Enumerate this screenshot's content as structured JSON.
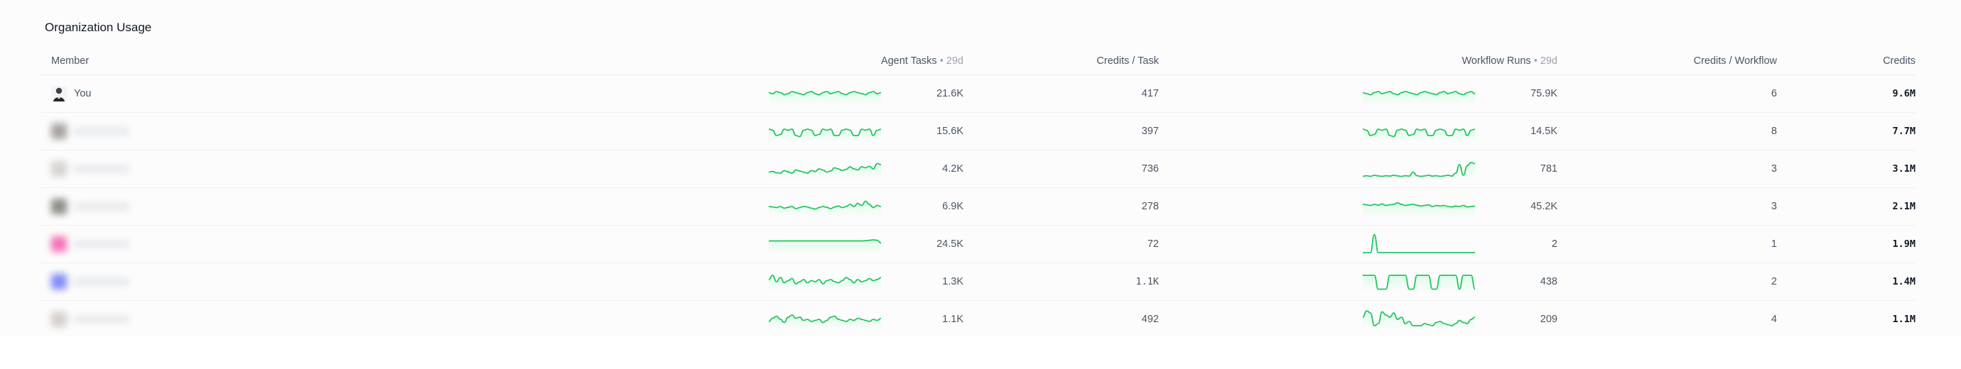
{
  "title": "Organization Usage",
  "headers": {
    "member": "Member",
    "agent_tasks": "Agent Tasks",
    "agent_tasks_period": " • 29d",
    "credits_per_task": "Credits / Task",
    "workflow_runs": "Workflow Runs",
    "workflow_runs_period": " • 29d",
    "credits_per_workflow": "Credits / Workflow",
    "credits": "Credits"
  },
  "colors": {
    "spark_line": "#22c55e",
    "spark_fill": "#dcfce7"
  },
  "rows": [
    {
      "member": "You",
      "avatar_icon": "user-photo-icon",
      "avatar_color": "#6b6b6b",
      "agent_tasks": "21.6K",
      "credits_per_task": "417",
      "workflow_runs": "75.9K",
      "credits_per_workflow": "6",
      "credits": "9.6M",
      "agent_spark": [
        0.55,
        0.5,
        0.6,
        0.55,
        0.45,
        0.5,
        0.6,
        0.55,
        0.5,
        0.45,
        0.55,
        0.6,
        0.5,
        0.45,
        0.55,
        0.6,
        0.5,
        0.55,
        0.6,
        0.5,
        0.45,
        0.55,
        0.6,
        0.55,
        0.5,
        0.45,
        0.55,
        0.6,
        0.5,
        0.55
      ],
      "workflow_spark": [
        0.55,
        0.5,
        0.45,
        0.55,
        0.6,
        0.5,
        0.55,
        0.6,
        0.5,
        0.45,
        0.55,
        0.6,
        0.55,
        0.5,
        0.45,
        0.55,
        0.6,
        0.55,
        0.5,
        0.45,
        0.55,
        0.6,
        0.5,
        0.55,
        0.6,
        0.5,
        0.45,
        0.55,
        0.6,
        0.5
      ]
    },
    {
      "member": "",
      "avatar_icon": "user-avatar-icon",
      "avatar_color": "#a8a29e",
      "agent_tasks": "15.6K",
      "credits_per_task": "397",
      "workflow_runs": "14.5K",
      "credits_per_workflow": "8",
      "credits": "7.7M",
      "agent_spark": [
        0.6,
        0.55,
        0.3,
        0.35,
        0.6,
        0.55,
        0.6,
        0.3,
        0.25,
        0.55,
        0.6,
        0.55,
        0.3,
        0.35,
        0.6,
        0.55,
        0.6,
        0.3,
        0.3,
        0.55,
        0.6,
        0.55,
        0.3,
        0.3,
        0.6,
        0.55,
        0.6,
        0.3,
        0.55,
        0.6
      ],
      "workflow_spark": [
        0.6,
        0.55,
        0.3,
        0.35,
        0.6,
        0.55,
        0.6,
        0.3,
        0.25,
        0.55,
        0.6,
        0.55,
        0.3,
        0.35,
        0.6,
        0.55,
        0.6,
        0.3,
        0.3,
        0.55,
        0.6,
        0.55,
        0.3,
        0.3,
        0.6,
        0.55,
        0.6,
        0.3,
        0.55,
        0.6
      ]
    },
    {
      "member": "",
      "avatar_icon": "user-avatar-icon",
      "avatar_color": "#d6d3d1",
      "agent_tasks": "4.2K",
      "credits_per_task": "736",
      "workflow_runs": "781",
      "credits_per_workflow": "3",
      "credits": "3.1M",
      "agent_spark": [
        0.35,
        0.38,
        0.32,
        0.3,
        0.42,
        0.36,
        0.3,
        0.45,
        0.4,
        0.35,
        0.3,
        0.42,
        0.38,
        0.5,
        0.45,
        0.35,
        0.4,
        0.55,
        0.5,
        0.42,
        0.48,
        0.6,
        0.5,
        0.45,
        0.6,
        0.55,
        0.62,
        0.5,
        0.75,
        0.7
      ],
      "workflow_spark": [
        0.15,
        0.18,
        0.15,
        0.2,
        0.17,
        0.15,
        0.18,
        0.16,
        0.2,
        0.17,
        0.15,
        0.18,
        0.16,
        0.35,
        0.18,
        0.15,
        0.17,
        0.2,
        0.16,
        0.18,
        0.15,
        0.17,
        0.2,
        0.16,
        0.3,
        0.7,
        0.2,
        0.65,
        0.8,
        0.75
      ]
    },
    {
      "member": "",
      "avatar_icon": "user-avatar-icon",
      "avatar_color": "#8a8f86",
      "agent_tasks": "6.9K",
      "credits_per_task": "278",
      "workflow_runs": "45.2K",
      "credits_per_workflow": "3",
      "credits": "2.1M",
      "agent_spark": [
        0.5,
        0.48,
        0.45,
        0.5,
        0.42,
        0.46,
        0.5,
        0.4,
        0.45,
        0.5,
        0.48,
        0.42,
        0.38,
        0.45,
        0.5,
        0.46,
        0.4,
        0.48,
        0.52,
        0.45,
        0.5,
        0.6,
        0.5,
        0.65,
        0.55,
        0.75,
        0.6,
        0.45,
        0.55,
        0.5
      ],
      "workflow_spark": [
        0.6,
        0.58,
        0.55,
        0.6,
        0.56,
        0.62,
        0.55,
        0.58,
        0.6,
        0.68,
        0.6,
        0.55,
        0.58,
        0.6,
        0.56,
        0.52,
        0.55,
        0.58,
        0.5,
        0.55,
        0.52,
        0.55,
        0.5,
        0.48,
        0.52,
        0.5,
        0.55,
        0.48,
        0.5,
        0.52
      ]
    },
    {
      "member": "",
      "avatar_icon": "user-avatar-icon",
      "avatar_color": "#f472b6",
      "agent_tasks": "24.5K",
      "credits_per_task": "72",
      "workflow_runs": "2",
      "credits_per_workflow": "1",
      "credits": "1.9M",
      "agent_spark": [
        0.65,
        0.65,
        0.65,
        0.65,
        0.65,
        0.65,
        0.65,
        0.65,
        0.65,
        0.65,
        0.65,
        0.65,
        0.65,
        0.65,
        0.65,
        0.65,
        0.65,
        0.65,
        0.65,
        0.65,
        0.65,
        0.65,
        0.65,
        0.65,
        0.65,
        0.66,
        0.68,
        0.7,
        0.68,
        0.55
      ],
      "workflow_spark": [
        0.1,
        0.1,
        0.1,
        0.95,
        0.1,
        0.1,
        0.1,
        0.1,
        0.1,
        0.1,
        0.1,
        0.1,
        0.1,
        0.1,
        0.1,
        0.1,
        0.1,
        0.1,
        0.1,
        0.1,
        0.1,
        0.1,
        0.1,
        0.1,
        0.1,
        0.1,
        0.1,
        0.1,
        0.1,
        0.1
      ]
    },
    {
      "member": "",
      "avatar_icon": "user-avatar-icon",
      "avatar_color": "#818cf8",
      "agent_tasks": "1.3K",
      "credits_per_task": "1.1K",
      "workflow_runs": "438",
      "credits_per_workflow": "2",
      "credits": "1.4M",
      "agent_spark": [
        0.6,
        0.8,
        0.5,
        0.7,
        0.45,
        0.55,
        0.65,
        0.4,
        0.5,
        0.6,
        0.45,
        0.55,
        0.5,
        0.6,
        0.4,
        0.55,
        0.6,
        0.5,
        0.45,
        0.55,
        0.7,
        0.6,
        0.45,
        0.6,
        0.5,
        0.55,
        0.65,
        0.55,
        0.6,
        0.7
      ],
      "workflow_spark": [
        0.8,
        0.8,
        0.8,
        0.8,
        0.15,
        0.15,
        0.15,
        0.8,
        0.8,
        0.8,
        0.8,
        0.8,
        0.15,
        0.15,
        0.8,
        0.8,
        0.8,
        0.8,
        0.15,
        0.15,
        0.8,
        0.8,
        0.8,
        0.8,
        0.8,
        0.15,
        0.8,
        0.8,
        0.8,
        0.15
      ]
    },
    {
      "member": "",
      "avatar_icon": "user-avatar-icon",
      "avatar_color": "#d6cfcc",
      "agent_tasks": "1.1K",
      "credits_per_task": "492",
      "workflow_runs": "209",
      "credits_per_workflow": "4",
      "credits": "1.1M",
      "agent_spark": [
        0.4,
        0.55,
        0.65,
        0.5,
        0.35,
        0.6,
        0.7,
        0.55,
        0.6,
        0.45,
        0.5,
        0.4,
        0.45,
        0.5,
        0.35,
        0.45,
        0.6,
        0.65,
        0.5,
        0.45,
        0.4,
        0.5,
        0.45,
        0.55,
        0.5,
        0.45,
        0.4,
        0.5,
        0.45,
        0.55
      ],
      "workflow_spark": [
        0.6,
        0.9,
        0.8,
        0.2,
        0.3,
        0.85,
        0.7,
        0.6,
        0.8,
        0.5,
        0.6,
        0.3,
        0.4,
        0.2,
        0.2,
        0.2,
        0.3,
        0.25,
        0.2,
        0.35,
        0.4,
        0.3,
        0.25,
        0.2,
        0.3,
        0.45,
        0.35,
        0.3,
        0.5,
        0.6
      ]
    }
  ]
}
